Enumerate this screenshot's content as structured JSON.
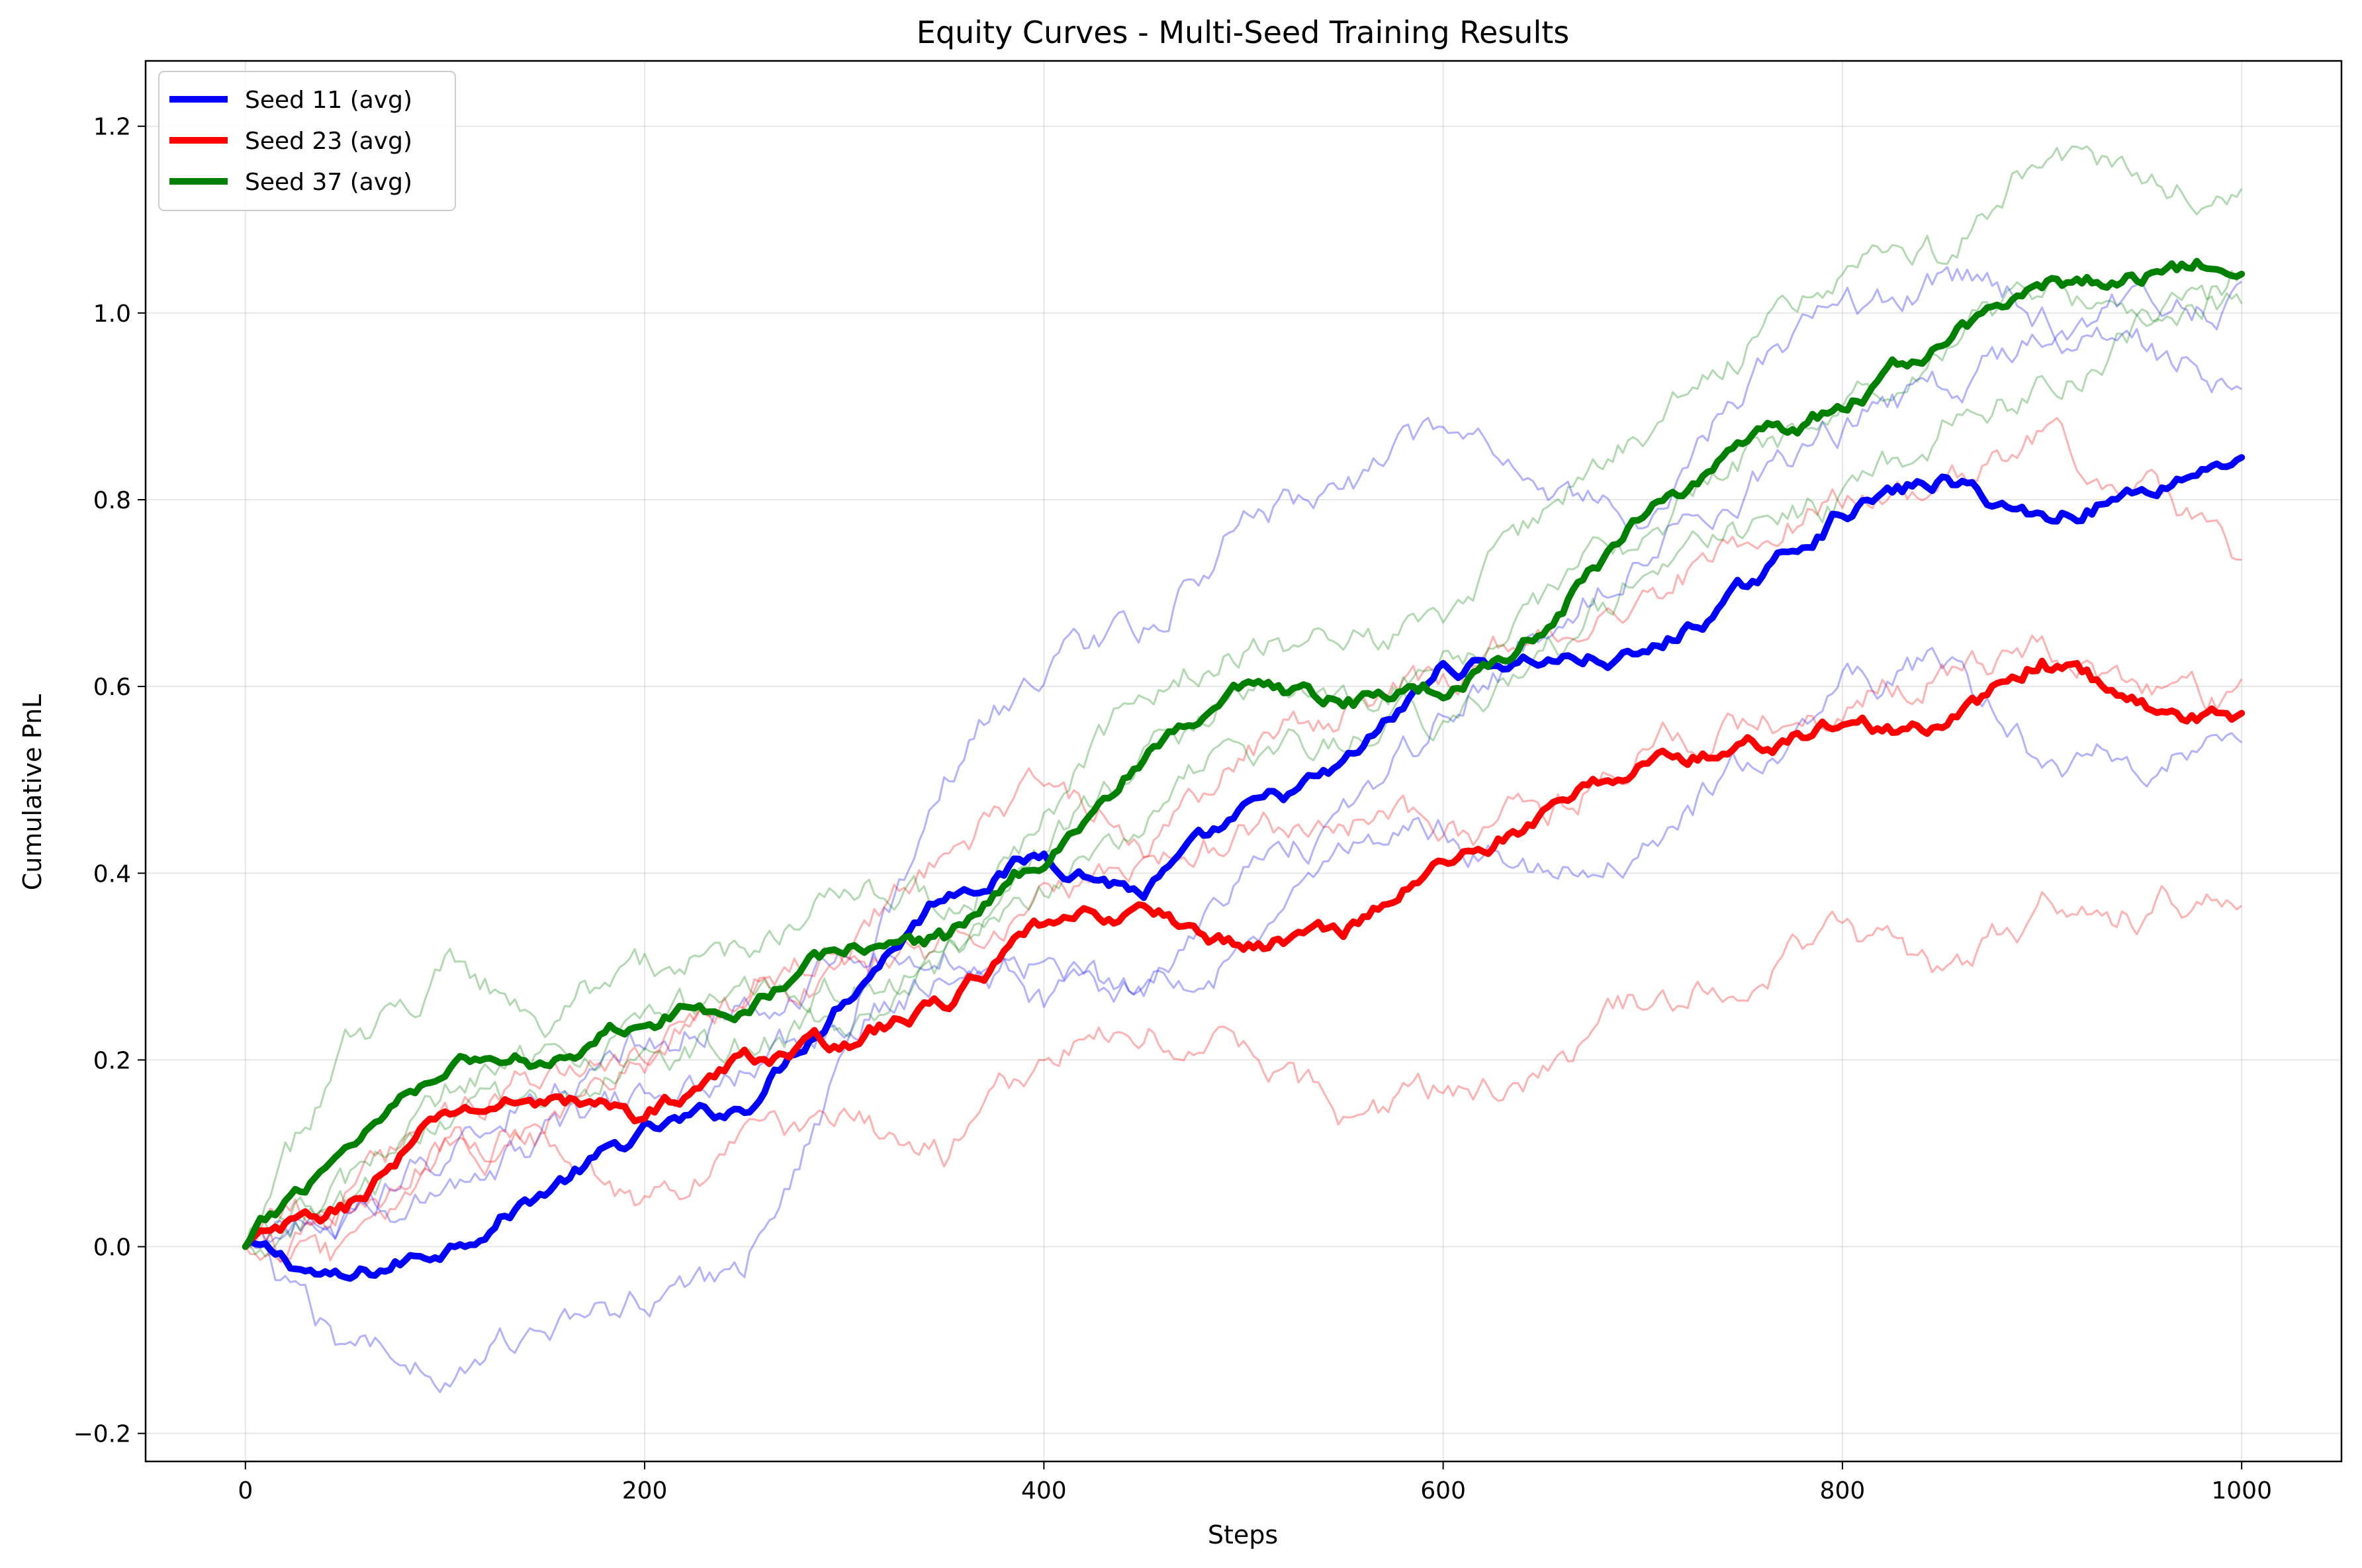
{
  "chart_data": {
    "type": "line",
    "title": "Equity Curves - Multi-Seed Training Results",
    "xlabel": "Steps",
    "ylabel": "Cumulative PnL",
    "xlim": [
      -50,
      1050
    ],
    "ylim": [
      -0.23,
      1.27
    ],
    "xticks": [
      0,
      200,
      400,
      600,
      800,
      1000
    ],
    "yticks": [
      -0.2,
      0.0,
      0.2,
      0.4,
      0.6,
      0.8,
      1.0,
      1.2
    ],
    "xtick_labels": [
      "0",
      "200",
      "400",
      "600",
      "800",
      "1000"
    ],
    "ytick_labels": [
      "−0.2",
      "0.0",
      "0.2",
      "0.4",
      "0.6",
      "0.8",
      "1.0",
      "1.2"
    ],
    "grid": true,
    "legend_position": "top-left",
    "x": [
      0,
      50,
      100,
      150,
      200,
      250,
      300,
      350,
      400,
      450,
      500,
      550,
      600,
      650,
      700,
      750,
      800,
      850,
      900,
      950,
      1000
    ],
    "series": [
      {
        "name": "Seed 11 (avg)",
        "color": "#0000ff",
        "values": [
          0.0,
          -0.04,
          0.0,
          0.06,
          0.12,
          0.15,
          0.27,
          0.38,
          0.42,
          0.38,
          0.46,
          0.51,
          0.62,
          0.63,
          0.63,
          0.7,
          0.79,
          0.82,
          0.78,
          0.81,
          0.85
        ],
        "runs": [
          {
            "values": [
              0.0,
              -0.12,
              -0.12,
              -0.1,
              -0.06,
              -0.02,
              0.2,
              0.52,
              0.62,
              0.66,
              0.78,
              0.82,
              0.86,
              0.82,
              0.78,
              0.92,
              1.0,
              1.04,
              1.0,
              0.96,
              0.93
            ]
          },
          {
            "values": [
              0.0,
              0.04,
              0.1,
              0.18,
              0.22,
              0.26,
              0.3,
              0.32,
              0.26,
              0.28,
              0.38,
              0.46,
              0.56,
              0.66,
              0.74,
              0.82,
              0.88,
              0.92,
              0.98,
              1.02,
              1.01
            ]
          },
          {
            "values": [
              0.0,
              0.02,
              0.06,
              0.12,
              0.16,
              0.2,
              0.24,
              0.3,
              0.3,
              0.26,
              0.32,
              0.4,
              0.44,
              0.4,
              0.42,
              0.52,
              0.6,
              0.62,
              0.52,
              0.52,
              0.56
            ]
          }
        ]
      },
      {
        "name": "Seed 23 (avg)",
        "color": "#ff0000",
        "values": [
          0.0,
          0.04,
          0.14,
          0.16,
          0.14,
          0.2,
          0.22,
          0.26,
          0.34,
          0.36,
          0.32,
          0.34,
          0.41,
          0.46,
          0.52,
          0.53,
          0.56,
          0.55,
          0.63,
          0.58,
          0.56
        ]
      },
      {
        "name": "Seed 37 (avg)",
        "color": "#008000",
        "values": [
          0.0,
          0.11,
          0.2,
          0.2,
          0.25,
          0.26,
          0.32,
          0.33,
          0.42,
          0.52,
          0.59,
          0.58,
          0.6,
          0.66,
          0.79,
          0.85,
          0.9,
          0.97,
          1.03,
          1.04,
          1.06
        ]
      }
    ],
    "background_runs": [
      {
        "color": "#ff0000",
        "values": [
          0.0,
          0.06,
          0.14,
          0.18,
          0.22,
          0.28,
          0.32,
          0.42,
          0.5,
          0.44,
          0.52,
          0.58,
          0.6,
          0.66,
          0.7,
          0.76,
          0.8,
          0.82,
          0.86,
          0.82,
          0.74
        ]
      },
      {
        "color": "#ff0000",
        "values": [
          0.0,
          0.02,
          0.1,
          0.12,
          0.2,
          0.26,
          0.3,
          0.32,
          0.36,
          0.4,
          0.44,
          0.46,
          0.44,
          0.46,
          0.54,
          0.56,
          0.58,
          0.62,
          0.64,
          0.6,
          0.58
        ]
      },
      {
        "color": "#ff0000",
        "values": [
          0.0,
          -0.02,
          0.1,
          0.12,
          0.04,
          0.1,
          0.14,
          0.1,
          0.2,
          0.24,
          0.22,
          0.14,
          0.16,
          0.18,
          0.26,
          0.3,
          0.34,
          0.28,
          0.36,
          0.36,
          0.39
        ]
      },
      {
        "color": "#008000",
        "values": [
          0.0,
          0.2,
          0.3,
          0.26,
          0.3,
          0.32,
          0.4,
          0.36,
          0.46,
          0.6,
          0.64,
          0.64,
          0.66,
          0.78,
          0.88,
          0.96,
          1.04,
          1.06,
          1.18,
          1.14,
          1.13
        ]
      },
      {
        "color": "#008000",
        "values": [
          0.0,
          0.06,
          0.16,
          0.2,
          0.24,
          0.26,
          0.28,
          0.3,
          0.42,
          0.52,
          0.6,
          0.58,
          0.62,
          0.7,
          0.76,
          0.84,
          0.9,
          0.96,
          1.02,
          1.0,
          1.01
        ]
      },
      {
        "color": "#008000",
        "values": [
          0.0,
          0.04,
          0.14,
          0.14,
          0.2,
          0.22,
          0.24,
          0.3,
          0.38,
          0.44,
          0.54,
          0.54,
          0.56,
          0.62,
          0.72,
          0.76,
          0.8,
          0.88,
          0.92,
          0.98,
          1.05
        ]
      }
    ]
  }
}
